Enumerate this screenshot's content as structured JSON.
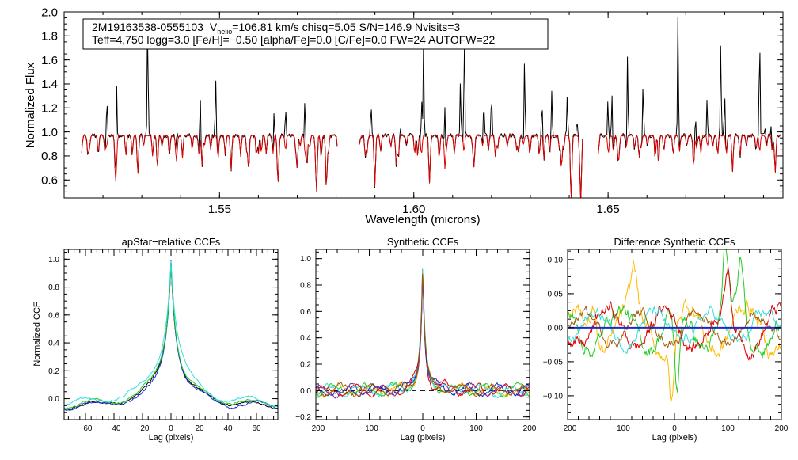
{
  "header": {
    "line1_star": "2M19163538-0555103",
    "line1_v": "V",
    "line1_vsub": "helio",
    "line1_rest": "=106.81 km/s  chisq=5.05  S/N=146.9  Nvisits=3",
    "line2": "Teff=4,750 logg=3.0 [Fe/H]=−0.50 [alpha/Fe]=0.0 [C/Fe]=0.0 FW=24 AUTOFW=22"
  },
  "colors": {
    "spectrum": "#000000",
    "model": "#dd0000",
    "green": "#22cc22",
    "cyan": "#33dddd",
    "blue": "#1a2acc",
    "orange": "#ffbb00",
    "brown": "#a05a10",
    "purple": "#7b2fa0",
    "dashed": "#000000"
  },
  "chart_data": [
    {
      "type": "line",
      "name": "spectrum",
      "title": "",
      "xlabel": "Wavelength (microns)",
      "ylabel": "Normalized Flux",
      "xlim": [
        1.51,
        1.695
      ],
      "ylim": [
        0.45,
        2.0
      ],
      "xticks": [
        1.55,
        1.6,
        1.65
      ],
      "xtick_labels": [
        "1.55",
        "1.60",
        "1.65"
      ],
      "yticks": [
        0.6,
        0.8,
        1.0,
        1.2,
        1.4,
        1.6,
        1.8,
        2.0
      ],
      "ytick_labels": [
        "0.6",
        "0.8",
        "1.0",
        "1.2",
        "1.4",
        "1.6",
        "1.8",
        "2.0"
      ],
      "chips": [
        [
          1.5145,
          1.5805
        ],
        [
          1.586,
          1.6435
        ],
        [
          1.6475,
          1.6945
        ]
      ],
      "continuum": 0.97,
      "absorption_lines": [
        [
          1.5165,
          0.86
        ],
        [
          1.5205,
          0.84
        ],
        [
          1.5232,
          0.64
        ],
        [
          1.529,
          0.78
        ],
        [
          1.534,
          0.7
        ],
        [
          1.539,
          0.82
        ],
        [
          1.5455,
          0.72
        ],
        [
          1.553,
          0.8
        ],
        [
          1.5575,
          0.69
        ],
        [
          1.56,
          0.82
        ],
        [
          1.565,
          0.63
        ],
        [
          1.57,
          0.72
        ],
        [
          1.5725,
          0.73
        ],
        [
          1.575,
          0.54
        ],
        [
          1.5775,
          0.53
        ],
        [
          1.5875,
          0.8
        ],
        [
          1.59,
          0.68
        ],
        [
          1.5955,
          0.72
        ],
        [
          1.601,
          0.8
        ],
        [
          1.604,
          0.65
        ],
        [
          1.608,
          0.7
        ],
        [
          1.6155,
          0.72
        ],
        [
          1.621,
          0.79
        ],
        [
          1.627,
          0.84
        ],
        [
          1.6335,
          0.77
        ],
        [
          1.638,
          0.7
        ],
        [
          1.6405,
          0.55
        ],
        [
          1.643,
          0.46
        ],
        [
          1.6525,
          0.81
        ],
        [
          1.658,
          0.78
        ],
        [
          1.663,
          0.73
        ],
        [
          1.672,
          0.7
        ],
        [
          1.682,
          0.76
        ],
        [
          1.689,
          0.83
        ],
        [
          1.693,
          0.66
        ]
      ],
      "emission_spikes": [
        [
          1.5145,
          1.05
        ],
        [
          1.521,
          1.42
        ],
        [
          1.5235,
          1.62
        ],
        [
          1.5315,
          2.0
        ],
        [
          1.539,
          1.22
        ],
        [
          1.545,
          1.37
        ],
        [
          1.549,
          1.45
        ],
        [
          1.564,
          1.2
        ],
        [
          1.567,
          1.33
        ],
        [
          1.572,
          1.45
        ],
        [
          1.589,
          1.24
        ],
        [
          1.5965,
          1.05
        ],
        [
          1.602,
          1.43
        ],
        [
          1.6025,
          1.78
        ],
        [
          1.608,
          1.48
        ],
        [
          1.612,
          1.41
        ],
        [
          1.613,
          2.0
        ],
        [
          1.618,
          1.31
        ],
        [
          1.62,
          1.35
        ],
        [
          1.6285,
          1.62
        ],
        [
          1.633,
          1.26
        ],
        [
          1.6355,
          1.33
        ],
        [
          1.6395,
          1.31
        ],
        [
          1.642,
          1.12
        ],
        [
          1.65,
          1.45
        ],
        [
          1.651,
          1.32
        ],
        [
          1.655,
          1.64
        ],
        [
          1.659,
          1.4
        ],
        [
          1.668,
          2.0
        ],
        [
          1.6725,
          1.2
        ],
        [
          1.6755,
          1.35
        ],
        [
          1.679,
          1.75
        ],
        [
          1.68,
          1.33
        ],
        [
          1.689,
          2.0
        ],
        [
          1.6905,
          1.08
        ],
        [
          1.692,
          1.08
        ]
      ]
    },
    {
      "type": "line",
      "name": "apstar-ccf",
      "title": "apStar−relative CCFs",
      "xlabel": "Lag (pixels)",
      "ylabel": "Normalized CCF",
      "xlim": [
        -75,
        75
      ],
      "ylim": [
        -0.15,
        1.07
      ],
      "xticks": [
        -60,
        -40,
        -20,
        0,
        20,
        40,
        60
      ],
      "xtick_labels": [
        "−60",
        "−40",
        "−20",
        "0",
        "20",
        "40",
        "60"
      ],
      "yticks": [
        0.0,
        0.2,
        0.4,
        0.6,
        0.8,
        1.0
      ],
      "ytick_labels": [
        "0.0",
        "0.2",
        "0.4",
        "0.6",
        "0.8",
        "1.0"
      ],
      "peak": 1.0,
      "series": [
        {
          "name": "black",
          "color": "#000000",
          "width": 4.2,
          "floor": -0.065
        },
        {
          "name": "blue",
          "color": "#1a2acc",
          "width": 4.0,
          "floor": -0.07
        },
        {
          "name": "green",
          "color": "#22cc22",
          "width": 4.3,
          "floor": -0.06
        },
        {
          "name": "cyan",
          "color": "#33dddd",
          "width": 5.2,
          "floor": -0.05
        }
      ]
    },
    {
      "type": "line",
      "name": "synthetic-ccf",
      "title": "Synthetic CCFs",
      "xlabel": "Lag (pixels)",
      "ylabel": "",
      "xlim": [
        -200,
        200
      ],
      "ylim": [
        -0.22,
        1.07
      ],
      "xticks": [
        -200,
        -100,
        0,
        100,
        200
      ],
      "xtick_labels": [
        "−200",
        "−100",
        "0",
        "100",
        "200"
      ],
      "yticks": [
        -0.2,
        0.0,
        0.2,
        0.4,
        0.6,
        0.8,
        1.0
      ],
      "ytick_labels": [
        "−0.2",
        "0.0",
        "0.2",
        "0.4",
        "0.6",
        "0.8",
        "1.0"
      ],
      "baseline": 0.0,
      "series": [
        {
          "name": "orange",
          "color": "#ffbb00"
        },
        {
          "name": "green",
          "color": "#22cc22"
        },
        {
          "name": "cyan",
          "color": "#33dddd"
        },
        {
          "name": "red",
          "color": "#dd0000"
        },
        {
          "name": "purple",
          "color": "#7b2fa0"
        },
        {
          "name": "blue",
          "color": "#1a2acc"
        },
        {
          "name": "brown",
          "color": "#a05a10"
        }
      ]
    },
    {
      "type": "line",
      "name": "difference-ccf",
      "title": "Difference Synthetic CCFs",
      "xlabel": "Lag (pixels)",
      "ylabel": "",
      "xlim": [
        -200,
        200
      ],
      "ylim": [
        -0.135,
        0.115
      ],
      "xticks": [
        -200,
        -100,
        0,
        100,
        200
      ],
      "xtick_labels": [
        "−200",
        "−100",
        "0",
        "100",
        "200"
      ],
      "yticks": [
        -0.1,
        -0.05,
        0.0,
        0.05,
        0.1
      ],
      "ytick_labels": [
        "−0.10",
        "−0.05",
        "0.00",
        "0.05",
        "0.10"
      ],
      "baseline": 0.0,
      "series": [
        {
          "name": "orange",
          "color": "#ffbb00",
          "amp": 0.035
        },
        {
          "name": "green",
          "color": "#22cc22",
          "amp": 0.03
        },
        {
          "name": "red",
          "color": "#dd0000",
          "amp": 0.028
        },
        {
          "name": "cyan",
          "color": "#33dddd",
          "amp": 0.022
        },
        {
          "name": "brown",
          "color": "#a05a10",
          "amp": 0.02
        }
      ],
      "features": [
        [
          5,
          -0.12,
          "green"
        ],
        [
          -5,
          -0.1,
          "orange"
        ],
        [
          95,
          0.1,
          "green"
        ],
        [
          125,
          0.085,
          "green"
        ],
        [
          100,
          0.065,
          "red"
        ],
        [
          -150,
          0.045,
          "orange"
        ],
        [
          -75,
          0.055,
          "orange"
        ]
      ]
    }
  ]
}
